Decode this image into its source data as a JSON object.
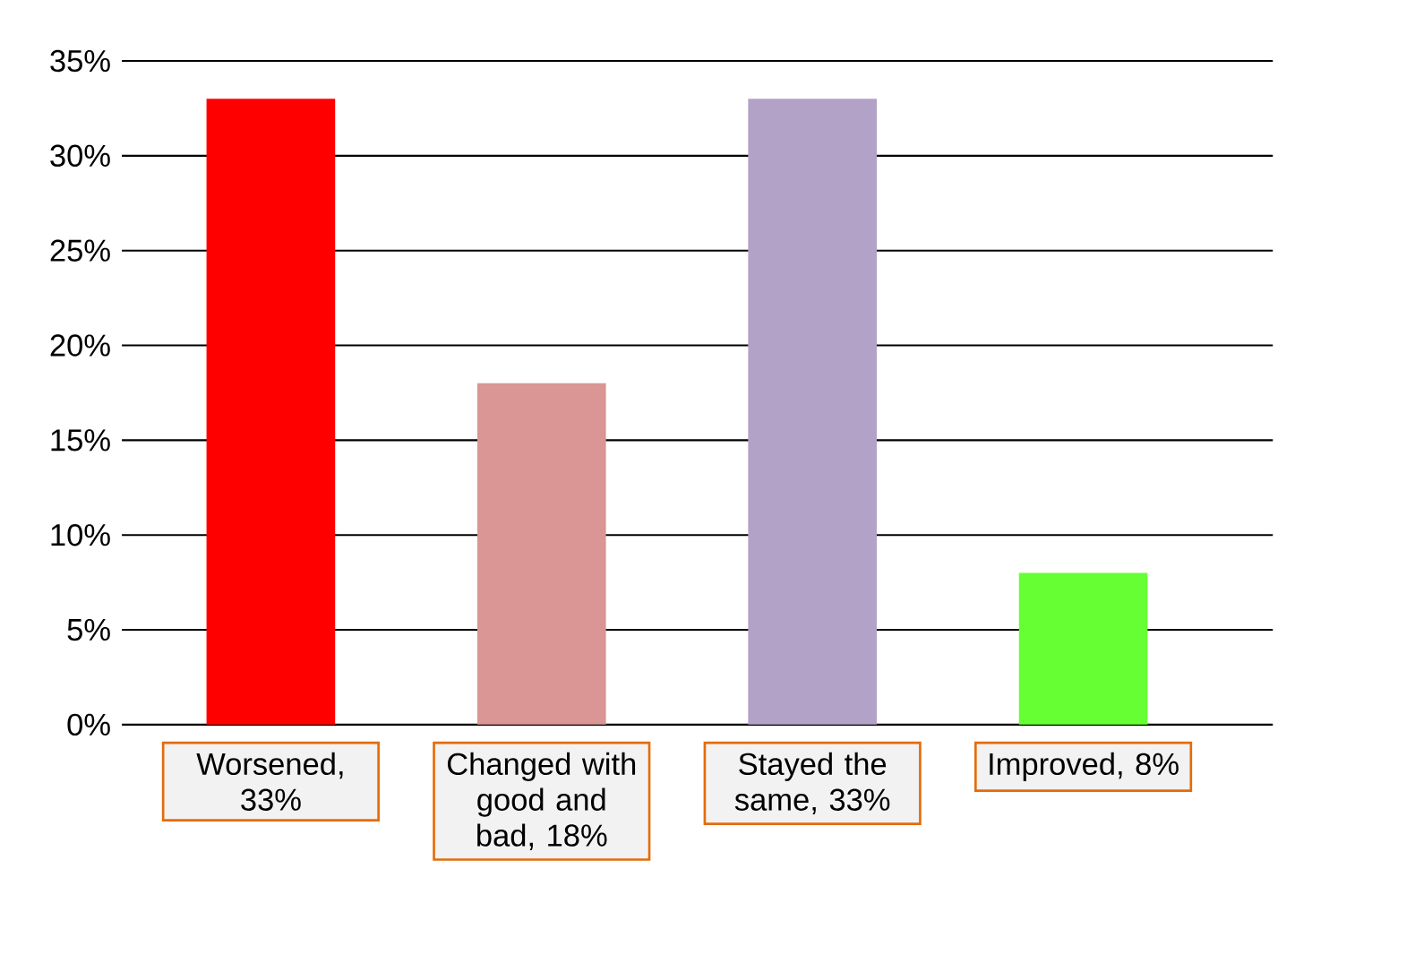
{
  "chart_data": {
    "type": "bar",
    "categories": [
      null,
      null,
      null,
      null
    ],
    "values": [
      33,
      18,
      33,
      8
    ],
    "colors": [
      "#ff0000",
      "#d99694",
      "#b3a2c7",
      "#66ff33"
    ],
    "value_labels": [
      "Worsened, 33%",
      "Changed with good and bad, 18%",
      "Stayed the same, 33%",
      "Improved, 8%"
    ],
    "ylim": [
      0,
      35
    ],
    "yticks": [
      {
        "value": 0,
        "label": "0%"
      },
      {
        "value": 5,
        "label": "5%"
      },
      {
        "value": 10,
        "label": "10%"
      },
      {
        "value": 15,
        "label": "15%"
      },
      {
        "value": 20,
        "label": "20%"
      },
      {
        "value": 25,
        "label": "25%"
      },
      {
        "value": 30,
        "label": "30%"
      },
      {
        "value": 35,
        "label": "35%"
      }
    ],
    "grid": "y"
  }
}
